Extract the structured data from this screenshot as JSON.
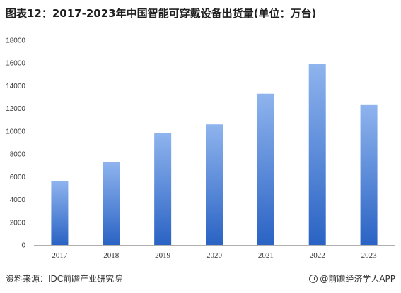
{
  "title": "图表12：2017-2023年中国智能可穿戴设备出货量(单位：万台)",
  "source": "资料来源：IDC前瞻产业研究院",
  "brand": "@前瞻经济学人APP",
  "colors": {
    "bar_top": "#8fb4ee",
    "bar_bottom": "#2a63c4",
    "axis": "#b0b0b0"
  },
  "chart_data": {
    "type": "bar",
    "categories": [
      "2017",
      "2018",
      "2019",
      "2020",
      "2021",
      "2022",
      "2023"
    ],
    "values": [
      5650,
      7300,
      9850,
      10600,
      13300,
      15950,
      12300
    ],
    "yticks": [
      0,
      2000,
      4000,
      6000,
      8000,
      10000,
      12000,
      14000,
      16000,
      18000
    ],
    "ylim": [
      0,
      18000
    ],
    "grid": false,
    "legend": "none"
  }
}
